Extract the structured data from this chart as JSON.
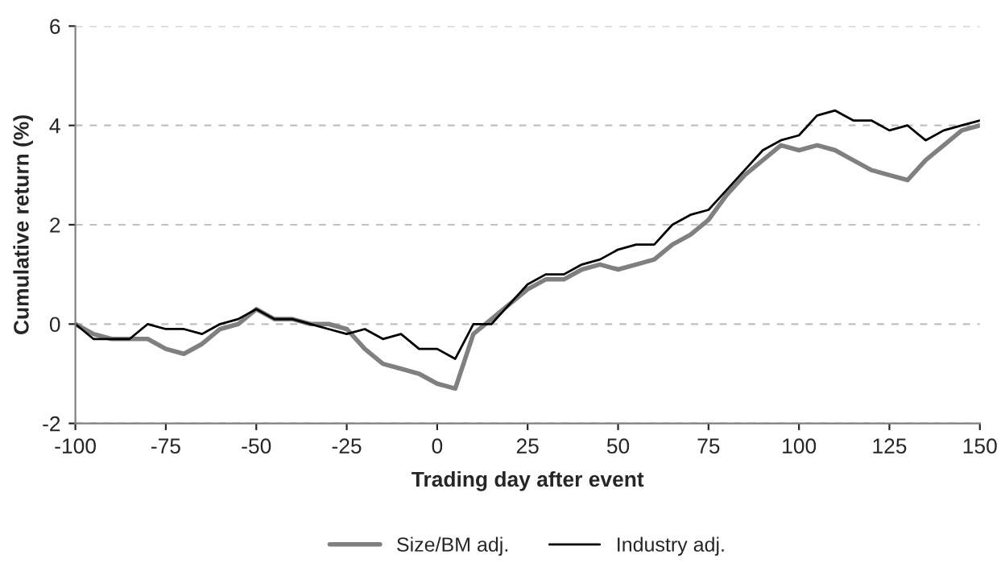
{
  "chart_data": {
    "type": "line",
    "xlabel": "Trading day after event",
    "ylabel": "Cumulative return (%)",
    "x": [
      -100,
      -95,
      -90,
      -85,
      -80,
      -75,
      -70,
      -65,
      -60,
      -55,
      -50,
      -45,
      -40,
      -35,
      -30,
      -25,
      -20,
      -15,
      -10,
      -5,
      0,
      5,
      10,
      15,
      20,
      25,
      30,
      35,
      40,
      45,
      50,
      55,
      60,
      65,
      70,
      75,
      80,
      85,
      90,
      95,
      100,
      105,
      110,
      115,
      120,
      125,
      130,
      135,
      140,
      145,
      150
    ],
    "series": [
      {
        "name": "Size/BM adj.",
        "color": "#808080",
        "values": [
          0,
          -0.2,
          -0.3,
          -0.3,
          -0.3,
          -0.5,
          -0.6,
          -0.4,
          -0.1,
          0.0,
          0.3,
          0.1,
          0.1,
          0.0,
          0.0,
          -0.1,
          -0.5,
          -0.8,
          -0.9,
          -1.0,
          -1.2,
          -1.3,
          -0.2,
          0.1,
          0.4,
          0.7,
          0.9,
          0.9,
          1.1,
          1.2,
          1.1,
          1.2,
          1.3,
          1.6,
          1.8,
          2.1,
          2.6,
          3.0,
          3.3,
          3.6,
          3.5,
          3.6,
          3.5,
          3.3,
          3.1,
          3.0,
          2.9,
          3.3,
          3.6,
          3.9,
          4.0
        ]
      },
      {
        "name": "Industry adj.",
        "color": "#000000",
        "values": [
          0,
          -0.3,
          -0.3,
          -0.3,
          0.0,
          -0.1,
          -0.1,
          -0.2,
          0.0,
          0.1,
          0.3,
          0.1,
          0.1,
          0.0,
          -0.1,
          -0.2,
          -0.1,
          -0.3,
          -0.2,
          -0.5,
          -0.5,
          -0.7,
          0.0,
          0.0,
          0.4,
          0.8,
          1.0,
          1.0,
          1.2,
          1.3,
          1.5,
          1.6,
          1.6,
          2.0,
          2.2,
          2.3,
          2.7,
          3.1,
          3.5,
          3.7,
          3.8,
          4.2,
          4.3,
          4.1,
          4.1,
          3.9,
          4.0,
          3.7,
          3.9,
          4.0,
          4.1
        ]
      }
    ],
    "xlim": [
      -100,
      150
    ],
    "xticks": [
      -100,
      -75,
      -50,
      -25,
      0,
      25,
      50,
      75,
      100,
      125,
      150
    ],
    "ylim": [
      -2,
      6
    ],
    "yticks": [
      -2,
      0,
      2,
      4,
      6
    ],
    "grid": "y",
    "legend": "bottom",
    "marker": "none",
    "line_style": "solid"
  }
}
